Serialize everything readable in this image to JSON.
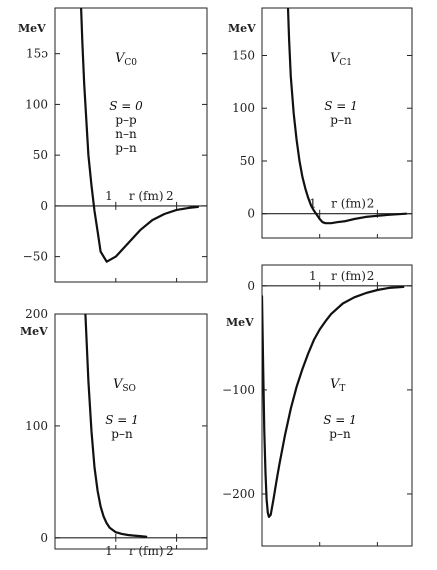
{
  "chart_data": [
    {
      "type": "line",
      "panel": "top-left",
      "name": "V",
      "name_sub": "C0",
      "ylabel": "MeV",
      "xlabel": "r (fm)",
      "xlim": [
        0,
        2.5
      ],
      "ylim": [
        -75,
        195
      ],
      "yticks": [
        -50,
        0,
        50,
        100,
        150
      ],
      "yticklabels": [
        "−50",
        "0",
        "50",
        "100",
        "15ɔ"
      ],
      "xticks": [
        1,
        2
      ],
      "xticklabels": [
        "1",
        "2"
      ],
      "annotations": [
        "S = 0",
        "p–p",
        "n–n",
        "p–n"
      ],
      "series": [
        {
          "x": [
            0.43,
            0.45,
            0.48,
            0.52,
            0.55,
            0.6,
            0.65,
            0.7,
            0.75,
            0.85,
            1.0,
            1.2,
            1.4,
            1.6,
            1.8,
            2.0,
            2.2,
            2.35
          ],
          "y": [
            195,
            160,
            120,
            80,
            50,
            20,
            -5,
            -25,
            -45,
            -55,
            -50,
            -37,
            -24,
            -14,
            -8,
            -4,
            -2,
            -1
          ]
        }
      ]
    },
    {
      "type": "line",
      "panel": "top-right",
      "name": "V",
      "name_sub": "C1",
      "ylabel": "MeV",
      "xlabel": "r (fm)",
      "xlim": [
        0,
        2.6
      ],
      "ylim": [
        -23,
        195
      ],
      "yticks": [
        0,
        50,
        100,
        150
      ],
      "yticklabels": [
        "0",
        "50",
        "100",
        "150"
      ],
      "xticks": [
        1,
        2
      ],
      "xticklabels": [
        "1",
        "2"
      ],
      "annotations": [
        "S = 1",
        "p–n"
      ],
      "series": [
        {
          "x": [
            0.45,
            0.47,
            0.5,
            0.55,
            0.6,
            0.65,
            0.7,
            0.75,
            0.8,
            0.85,
            0.9,
            0.95,
            1.0,
            1.05,
            1.1,
            1.2,
            1.3,
            1.45,
            1.6,
            1.8,
            2.0,
            2.2,
            2.5
          ],
          "y": [
            195,
            165,
            130,
            95,
            70,
            50,
            35,
            24,
            15,
            8,
            3,
            -1,
            -5,
            -8,
            -9,
            -9,
            -8,
            -7,
            -5,
            -3,
            -2,
            -1,
            0
          ]
        }
      ]
    },
    {
      "type": "line",
      "panel": "bottom-left",
      "name": "V",
      "name_sub": "SO",
      "ylabel": "MeV",
      "xlabel": "r (fm)",
      "xlim": [
        0,
        2.5
      ],
      "ylim": [
        -10,
        200
      ],
      "yticks": [
        0,
        100,
        200
      ],
      "yticklabels": [
        "0",
        "100",
        "200"
      ],
      "xticks": [
        1,
        2
      ],
      "xticklabels": [
        "1",
        "2"
      ],
      "annotations": [
        "S = 1",
        "p–n"
      ],
      "series": [
        {
          "x": [
            0.5,
            0.55,
            0.6,
            0.65,
            0.7,
            0.75,
            0.8,
            0.85,
            0.9,
            1.0,
            1.1,
            1.2,
            1.3,
            1.4,
            1.5
          ],
          "y": [
            200,
            140,
            95,
            63,
            42,
            28,
            19,
            13,
            9,
            5,
            3.5,
            2.5,
            2,
            1.5,
            1
          ]
        }
      ]
    },
    {
      "type": "line",
      "panel": "bottom-right",
      "name": "V",
      "name_sub": "T",
      "ylabel": "MeV",
      "xlabel": "r (fm)",
      "xlim": [
        0,
        2.6
      ],
      "ylim": [
        -250,
        20
      ],
      "yticks": [
        -200,
        -100,
        0
      ],
      "yticklabels": [
        "−200",
        "−100",
        "0"
      ],
      "xticks": [
        1,
        2
      ],
      "xticklabels": [
        "1",
        "2"
      ],
      "annotations": [
        "S = 1",
        "p–n"
      ],
      "series": [
        {
          "x": [
            0.0,
            0.02,
            0.04,
            0.06,
            0.08,
            0.1,
            0.12,
            0.15,
            0.2,
            0.25,
            0.3,
            0.4,
            0.5,
            0.6,
            0.7,
            0.8,
            0.9,
            1.0,
            1.1,
            1.2,
            1.4,
            1.6,
            1.8,
            2.0,
            2.2,
            2.45
          ],
          "y": [
            -10,
            -80,
            -140,
            -180,
            -205,
            -218,
            -222,
            -220,
            -205,
            -188,
            -172,
            -143,
            -118,
            -97,
            -80,
            -65,
            -52,
            -42,
            -34,
            -27,
            -17,
            -11,
            -7,
            -4,
            -2,
            -1
          ]
        }
      ]
    }
  ]
}
